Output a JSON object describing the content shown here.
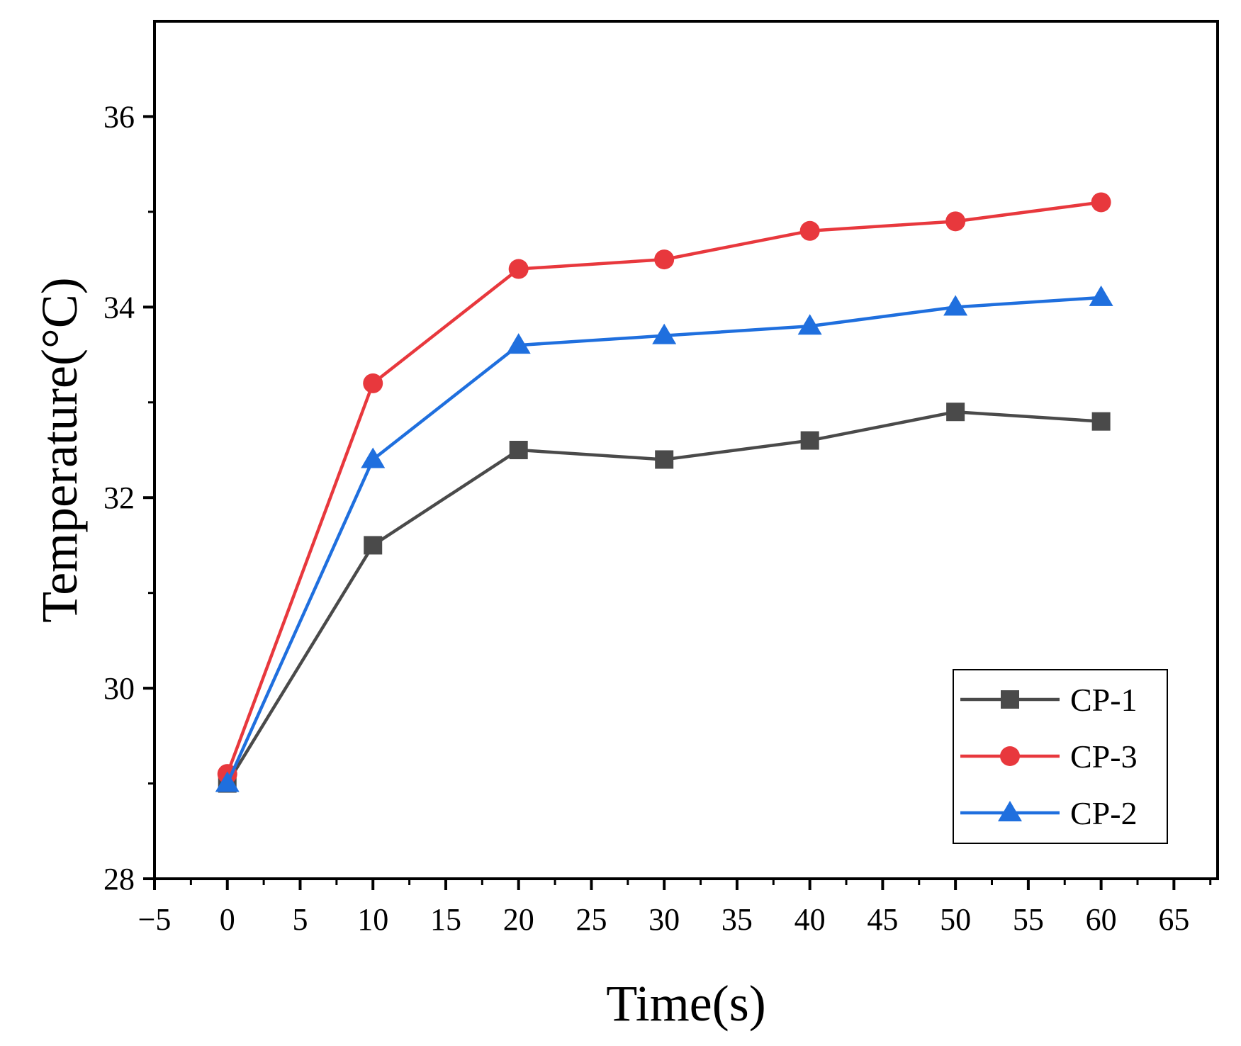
{
  "chart_data": {
    "type": "line",
    "title": "",
    "xlabel": "Time(s)",
    "ylabel": "Temperature(°C)",
    "xlim": [
      -5,
      68
    ],
    "ylim": [
      28,
      37
    ],
    "xticks": [
      -5,
      0,
      5,
      10,
      15,
      20,
      25,
      30,
      35,
      40,
      45,
      50,
      55,
      60,
      65
    ],
    "xtick_labels": [
      "−5",
      "0",
      "5",
      "10",
      "15",
      "20",
      "25",
      "30",
      "35",
      "40",
      "45",
      "50",
      "55",
      "60",
      "65"
    ],
    "yticks": [
      28,
      30,
      32,
      34,
      36
    ],
    "ytick_labels": [
      "28",
      "30",
      "32",
      "34",
      "36"
    ],
    "x": [
      0,
      10,
      20,
      30,
      40,
      50,
      60
    ],
    "legend_position": "bottom-right",
    "series": [
      {
        "name": "CP-1",
        "marker": "square",
        "color": "#4a4a4a",
        "values": [
          29.0,
          31.5,
          32.5,
          32.4,
          32.6,
          32.9,
          32.8
        ]
      },
      {
        "name": "CP-3",
        "marker": "circle",
        "color": "#e8383d",
        "values": [
          29.1,
          33.2,
          34.4,
          34.5,
          34.8,
          34.9,
          35.1
        ]
      },
      {
        "name": "CP-2",
        "marker": "triangle",
        "color": "#1f6fde",
        "values": [
          29.0,
          32.4,
          33.6,
          33.7,
          33.8,
          34.0,
          34.1
        ]
      }
    ]
  }
}
